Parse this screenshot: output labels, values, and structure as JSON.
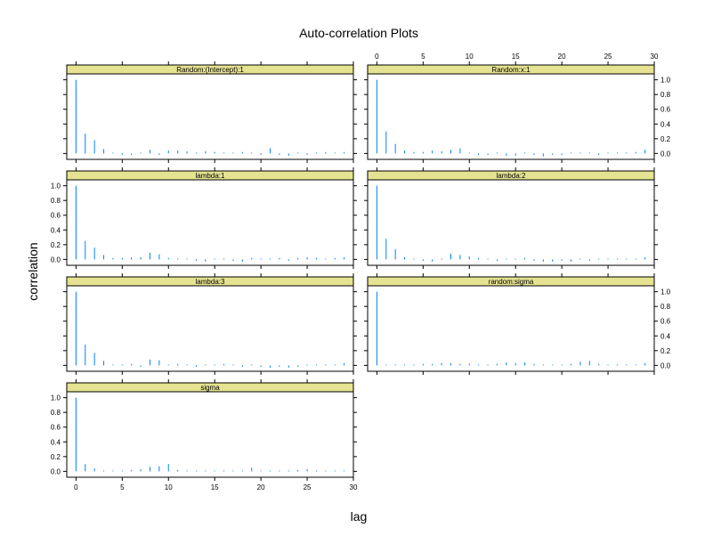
{
  "chart_data": {
    "type": "bar",
    "title": "Auto-correlation Plots",
    "xlabel": "lag",
    "ylabel": "correlation",
    "xlim": [
      -1,
      30
    ],
    "ylim": [
      -0.08,
      1.08
    ],
    "x_ticks": [
      0,
      5,
      10,
      15,
      20,
      25,
      30
    ],
    "x_tick_labels": [
      "0",
      "5",
      "10",
      "15",
      "20",
      "25",
      "30"
    ],
    "y_ticks": [
      0,
      0.2,
      0.4,
      0.6,
      0.8,
      1
    ],
    "y_tick_labels": [
      "0.0",
      "0.2",
      "0.4",
      "0.6",
      "0.8",
      "1.0"
    ],
    "line_color": "#0080ff",
    "strip_color": "#e5e291",
    "lags": [
      0,
      1,
      2,
      3,
      4,
      5,
      6,
      7,
      8,
      9,
      10,
      11,
      12,
      13,
      14,
      15,
      16,
      17,
      18,
      19,
      20,
      21,
      22,
      23,
      24,
      25,
      26,
      27,
      28,
      29
    ],
    "panels": [
      {
        "label": "Random:(Intercept):1",
        "values": [
          1.0,
          0.27,
          0.18,
          0.06,
          0.01,
          -0.02,
          -0.02,
          -0.01,
          0.05,
          -0.02,
          0.04,
          0.04,
          0.03,
          -0.01,
          0.03,
          0.02,
          -0.01,
          0.0,
          0.02,
          0.01,
          -0.02,
          0.07,
          -0.02,
          -0.03,
          -0.01,
          -0.02,
          0.01,
          0.02,
          0.0,
          0.02
        ]
      },
      {
        "label": "Random:x:1",
        "values": [
          1.0,
          0.3,
          0.13,
          0.04,
          0.02,
          0.02,
          0.04,
          0.03,
          0.05,
          0.07,
          -0.01,
          -0.02,
          -0.02,
          -0.01,
          -0.03,
          -0.03,
          0.01,
          -0.02,
          -0.04,
          -0.02,
          -0.02,
          0.0,
          -0.01,
          0.01,
          -0.02,
          -0.01,
          -0.01,
          0.0,
          0.02,
          0.05
        ]
      },
      {
        "label": "lambda:1",
        "values": [
          1.0,
          0.25,
          0.16,
          0.06,
          0.02,
          0.02,
          0.03,
          0.03,
          0.09,
          0.07,
          0.02,
          -0.01,
          0.01,
          -0.02,
          -0.03,
          0.01,
          -0.01,
          -0.02,
          -0.03,
          0.02,
          0.01,
          0.01,
          0.02,
          -0.02,
          0.02,
          0.03,
          0.02,
          -0.01,
          0.02,
          0.03
        ]
      },
      {
        "label": "lambda:2",
        "values": [
          1.0,
          0.28,
          0.14,
          0.03,
          0.01,
          -0.02,
          -0.03,
          0.01,
          0.08,
          0.06,
          0.04,
          0.02,
          -0.01,
          -0.02,
          -0.01,
          0.01,
          0.02,
          -0.02,
          -0.03,
          -0.03,
          -0.02,
          -0.03,
          -0.01,
          -0.02,
          0.01,
          -0.01,
          0.01,
          0.0,
          0.01,
          0.03
        ]
      },
      {
        "label": "lambda:3",
        "values": [
          1.0,
          0.28,
          0.17,
          0.06,
          0.01,
          0.01,
          0.02,
          -0.02,
          0.08,
          0.07,
          0.01,
          0.02,
          0.01,
          -0.02,
          -0.01,
          0.01,
          0.02,
          -0.01,
          -0.02,
          -0.01,
          -0.02,
          -0.03,
          -0.02,
          -0.03,
          -0.02,
          -0.01,
          -0.01,
          0.01,
          -0.01,
          0.03
        ]
      },
      {
        "label": "random:sigma",
        "values": [
          1.0,
          0.01,
          0.0,
          -0.01,
          0.01,
          0.02,
          0.02,
          0.03,
          0.03,
          0.02,
          0.02,
          0.01,
          0.01,
          0.02,
          0.04,
          0.03,
          0.04,
          0.02,
          0.01,
          0.0,
          0.01,
          0.02,
          0.05,
          0.06,
          0.02,
          0.0,
          -0.01,
          0.0,
          0.01,
          0.03
        ]
      },
      {
        "label": "sigma",
        "values": [
          1.0,
          0.1,
          0.04,
          0.0,
          0.0,
          0.01,
          0.02,
          0.03,
          0.06,
          0.07,
          0.1,
          0.02,
          0.0,
          -0.01,
          0.01,
          0.01,
          0.0,
          0.01,
          0.0,
          0.05,
          0.0,
          -0.01,
          0.01,
          0.0,
          0.02,
          0.03,
          0.01,
          0.01,
          0.0,
          0.01
        ]
      }
    ]
  }
}
